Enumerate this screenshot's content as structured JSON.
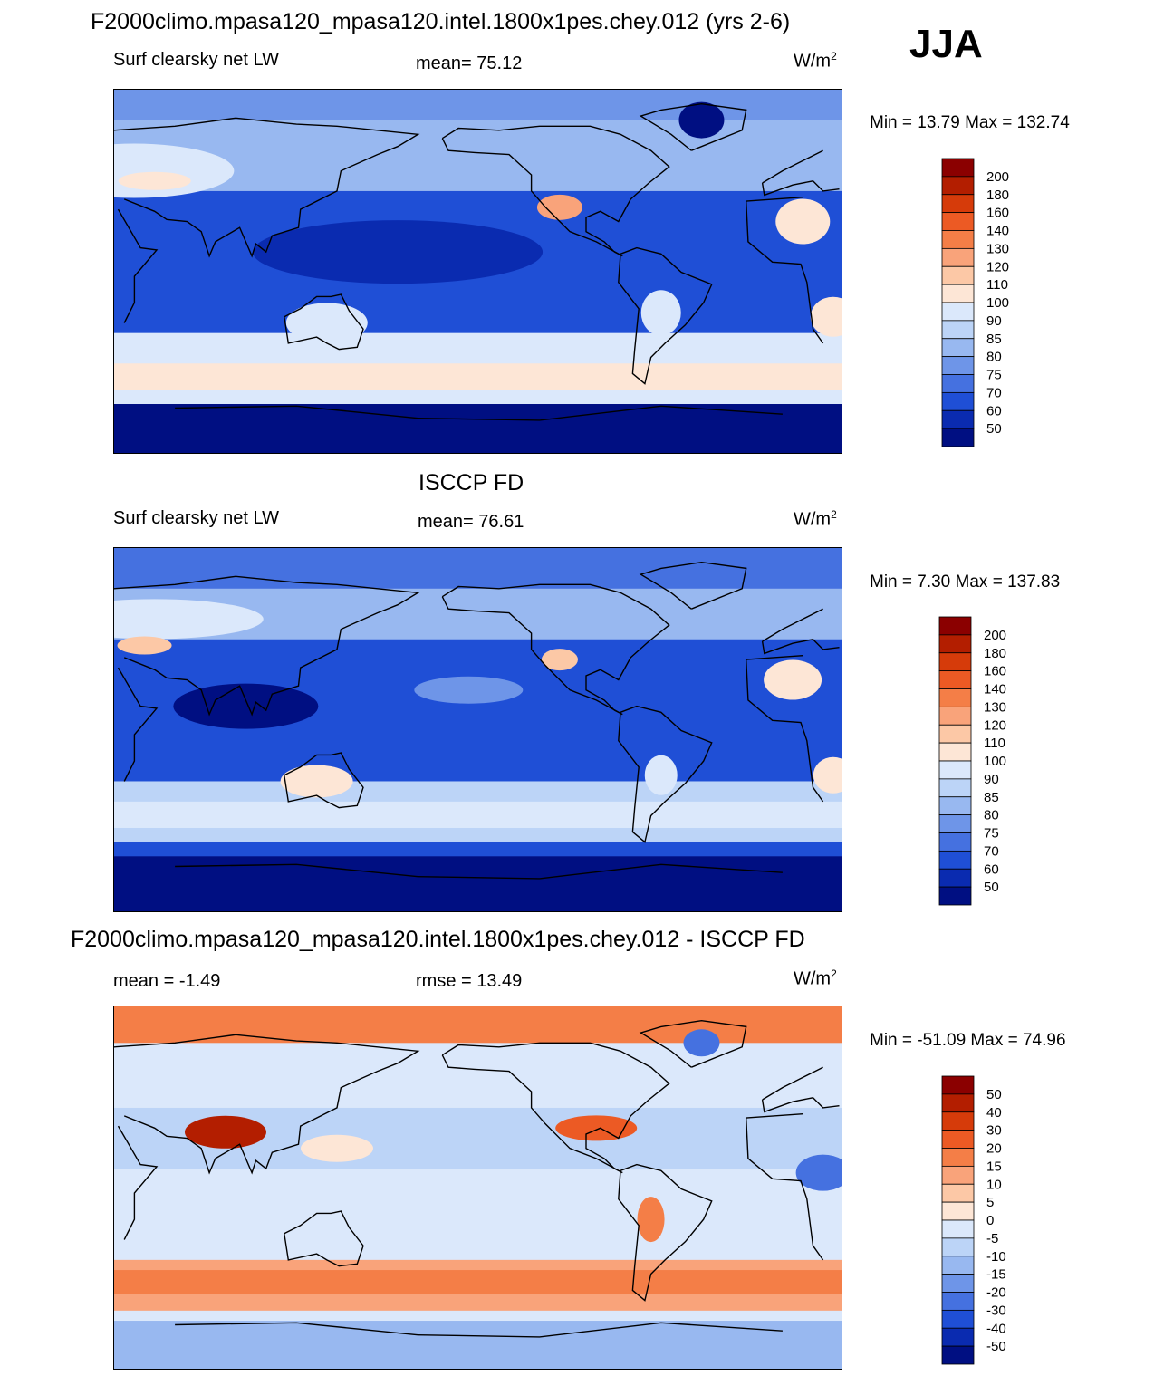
{
  "page": {
    "season": "JJA",
    "title_top": "F2000climo.mpasa120_mpasa120.intel.1800x1pes.chey.012 (yrs 2-6)",
    "title_mid": "ISCCP FD",
    "title_bottom": "F2000climo.mpasa120_mpasa120.intel.1800x1pes.chey.012 - ISCCP FD"
  },
  "panels": [
    {
      "variable": "Surf clearsky net LW",
      "stat": "mean=  75.12",
      "units": "W/m",
      "units_sup": "2",
      "minmax": "Min =  13.79 Max = 132.74"
    },
    {
      "variable": "Surf clearsky net LW",
      "stat": "mean=  76.61",
      "units": "W/m",
      "units_sup": "2",
      "minmax": "Min =   7.30 Max = 137.83"
    },
    {
      "variable": "mean =  -1.49",
      "stat": "rmse =  13.49",
      "units": "W/m",
      "units_sup": "2",
      "minmax": "Min = -51.09 Max =  74.96"
    }
  ],
  "chart_data": [
    {
      "type": "heatmap",
      "title": "F2000climo.mpasa120_mpasa120.intel.1800x1pes.chey.012 (yrs 2-6)",
      "variable": "Surf clearsky net LW",
      "units": "W/m2",
      "mean": 75.12,
      "min": 13.79,
      "max": 132.74,
      "colorbar_levels": [
        "200",
        "180",
        "160",
        "140",
        "130",
        "120",
        "110",
        "100",
        "90",
        "85",
        "80",
        "75",
        "70",
        "60",
        "50"
      ],
      "colors": [
        "#8b0000",
        "#b31e00",
        "#d63b0a",
        "#ec5a24",
        "#f47e47",
        "#f9a37a",
        "#fcc8a6",
        "#fde6d6",
        "#dbe8fb",
        "#bcd4f7",
        "#98b8f0",
        "#6e95e8",
        "#4571e0",
        "#1f4fd6",
        "#0a2bb0",
        "#000f82"
      ]
    },
    {
      "type": "heatmap",
      "title": "ISCCP FD",
      "variable": "Surf clearsky net LW",
      "units": "W/m2",
      "mean": 76.61,
      "min": 7.3,
      "max": 137.83,
      "colorbar_levels": [
        "200",
        "180",
        "160",
        "140",
        "130",
        "120",
        "110",
        "100",
        "90",
        "85",
        "80",
        "75",
        "70",
        "60",
        "50"
      ],
      "colors": [
        "#8b0000",
        "#b31e00",
        "#d63b0a",
        "#ec5a24",
        "#f47e47",
        "#f9a37a",
        "#fcc8a6",
        "#fde6d6",
        "#dbe8fb",
        "#bcd4f7",
        "#98b8f0",
        "#6e95e8",
        "#4571e0",
        "#1f4fd6",
        "#0a2bb0",
        "#000f82"
      ]
    },
    {
      "type": "heatmap",
      "title": "F2000climo.mpasa120_mpasa120.intel.1800x1pes.chey.012 - ISCCP FD",
      "units": "W/m2",
      "mean": -1.49,
      "rmse": 13.49,
      "min": -51.09,
      "max": 74.96,
      "colorbar_levels": [
        "50",
        "40",
        "30",
        "20",
        "15",
        "10",
        "5",
        "0",
        "-5",
        "-10",
        "-15",
        "-20",
        "-30",
        "-40",
        "-50"
      ],
      "colors": [
        "#8b0000",
        "#b31e00",
        "#d63b0a",
        "#ec5a24",
        "#f47e47",
        "#f9a37a",
        "#fcc8a6",
        "#fde6d6",
        "#dbe8fb",
        "#bcd4f7",
        "#98b8f0",
        "#6e95e8",
        "#4571e0",
        "#1f4fd6",
        "#0a2bb0",
        "#000f82"
      ]
    }
  ]
}
